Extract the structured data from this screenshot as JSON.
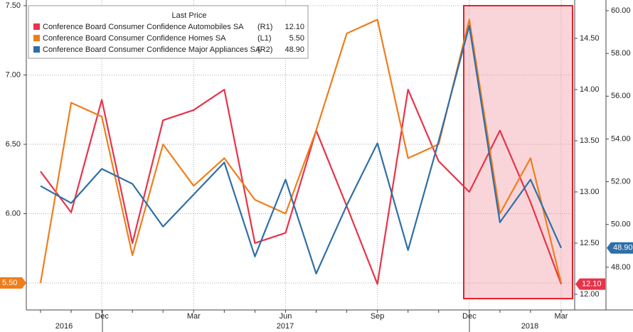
{
  "chart_data": {
    "type": "line",
    "legend_title": "Last Price",
    "categories": [
      null,
      null,
      "Dec",
      null,
      null,
      "Mar",
      null,
      null,
      "Jun",
      null,
      null,
      "Sep",
      null,
      null,
      "Dec",
      null,
      null,
      "Mar"
    ],
    "year_labels": [
      "2016",
      "2017",
      "2018"
    ],
    "series": [
      {
        "name": "Conference Board Consumer Confidence Automobiles SA",
        "axis_label": "(R1)",
        "last_label": "12.10",
        "color": "#e8334a",
        "axis": "y2",
        "values": [
          13.2,
          12.8,
          13.9,
          12.5,
          13.7,
          13.8,
          14.0,
          12.5,
          12.6,
          13.6,
          12.86,
          12.1,
          14.0,
          13.3,
          13.0,
          13.6,
          12.9,
          12.1
        ]
      },
      {
        "name": "Conference Board Consumer Confidence Homes SA",
        "axis_label": "(L1)",
        "last_label": "5.50",
        "color": "#f07d1a",
        "axis": "y",
        "values": [
          5.5,
          6.8,
          6.7,
          5.7,
          6.5,
          6.2,
          6.4,
          6.1,
          6.0,
          6.6,
          7.3,
          7.4,
          6.4,
          6.5,
          7.4,
          6.0,
          6.4,
          5.5
        ]
      },
      {
        "name": "Conference Board Consumer Confidence Major Appliances SA",
        "axis_label": "(R2)",
        "last_label": "48.90",
        "color": "#2e6fa7",
        "axis": "y3",
        "values": [
          51.8,
          51.0,
          52.6,
          51.9,
          49.9,
          51.4,
          52.9,
          48.5,
          52.1,
          47.7,
          50.9,
          53.8,
          48.8,
          53.9,
          59.3,
          50.1,
          52.1,
          48.9
        ]
      }
    ],
    "ylim": [
      5.305,
      7.541
    ],
    "yticks": [
      {
        "value": 5.5,
        "label": "5.50"
      },
      {
        "value": 6,
        "label": "6.00"
      },
      {
        "value": 6.5,
        "label": "6.50"
      },
      {
        "value": 7,
        "label": "7.00"
      },
      {
        "value": 7.5,
        "label": "7.50"
      }
    ],
    "y2lim": [
      11.847,
      14.875
    ],
    "y2ticks": [
      {
        "value": 12,
        "label": "12.00"
      },
      {
        "value": 12.5,
        "label": "12.50"
      },
      {
        "value": 13,
        "label": "13.00"
      },
      {
        "value": 13.5,
        "label": "13.50"
      },
      {
        "value": 14,
        "label": "14.00"
      },
      {
        "value": 14.5,
        "label": "14.50"
      }
    ],
    "y3lim": [
      46.0,
      60.5
    ],
    "y3ticks": [
      {
        "value": 48,
        "label": "48.00"
      },
      {
        "value": 50,
        "label": "50.00"
      },
      {
        "value": 52,
        "label": "52.00"
      },
      {
        "value": 54,
        "label": "54.00"
      },
      {
        "value": 56,
        "label": "56.00"
      },
      {
        "value": 58,
        "label": "58.00"
      },
      {
        "value": 60,
        "label": "60.00"
      }
    ],
    "grid": true
  }
}
